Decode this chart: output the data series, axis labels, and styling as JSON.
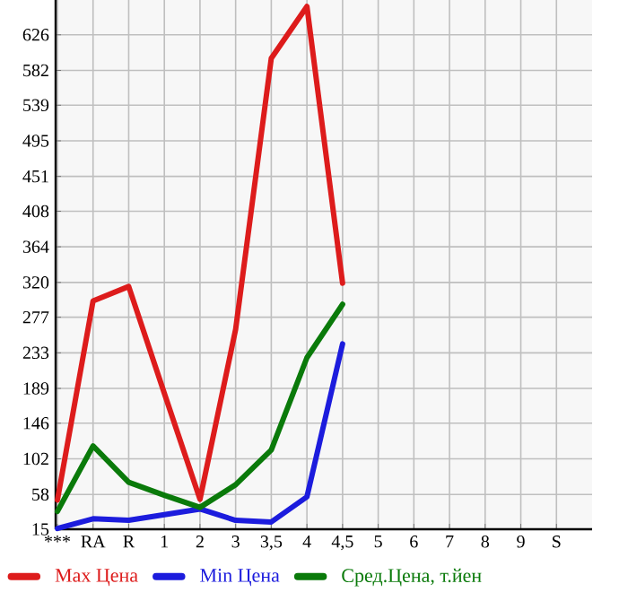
{
  "chart_data": {
    "type": "line",
    "categories": [
      "***",
      "RA",
      "R",
      "1",
      "2",
      "3",
      "3,5",
      "4",
      "4,5",
      "5",
      "6",
      "7",
      "8",
      "9",
      "S"
    ],
    "series": [
      {
        "name": "Max Цена",
        "color": "#dd1c1c",
        "values": [
          51,
          297,
          315,
          183,
          52,
          262,
          597,
          661,
          319,
          null,
          null,
          null,
          null,
          null,
          null
        ]
      },
      {
        "name": "Min Цена",
        "color": "#1c1cdd",
        "values": [
          16,
          28,
          26,
          33,
          40,
          26,
          24,
          55,
          244,
          null,
          null,
          null,
          null,
          null,
          null
        ]
      },
      {
        "name": "Сред.Цена, т.йен",
        "color": "#0a7a0a",
        "values": [
          37,
          118,
          73,
          57,
          42,
          70,
          113,
          227,
          293,
          null,
          null,
          null,
          null,
          null,
          null
        ]
      }
    ],
    "ylim": [
      15,
      669
    ],
    "yticks": [
      15,
      58,
      102,
      146,
      189,
      233,
      277,
      320,
      364,
      408,
      451,
      495,
      539,
      582,
      626
    ],
    "grid": true,
    "legend": "bottom",
    "marker": "none",
    "line_style": "solid"
  }
}
